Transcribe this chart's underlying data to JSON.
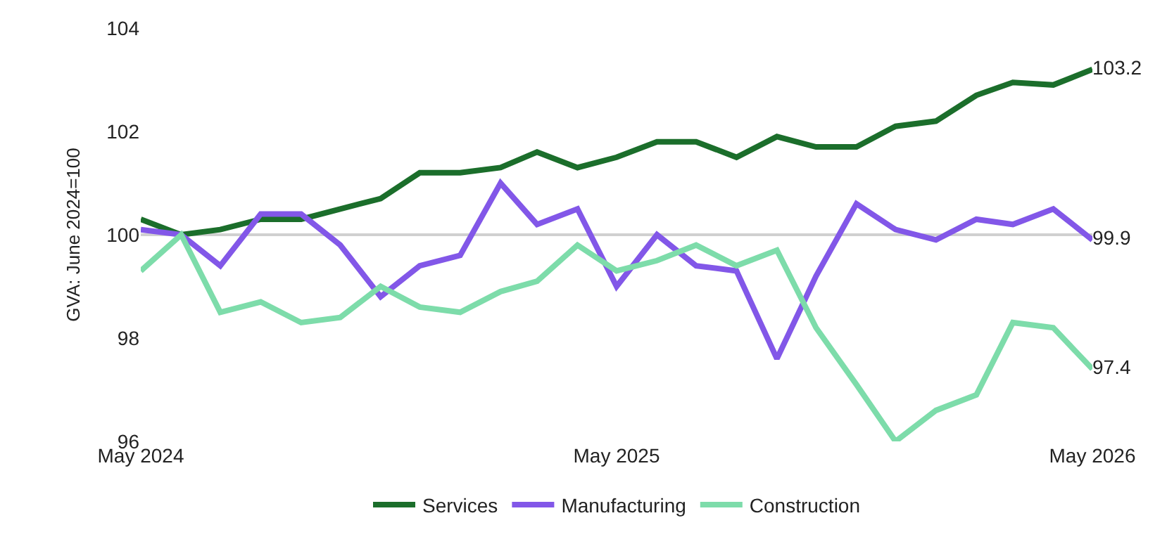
{
  "chart_data": {
    "type": "line",
    "ylabel": "GVA: June 2024=100",
    "x": [
      "2024-05",
      "2024-06",
      "2024-07",
      "2024-08",
      "2024-09",
      "2024-10",
      "2024-11",
      "2024-12",
      "2025-01",
      "2025-02",
      "2025-03",
      "2025-04",
      "2025-05",
      "2025-06",
      "2025-07",
      "2025-08",
      "2025-09",
      "2025-10",
      "2025-11",
      "2025-12",
      "2026-01",
      "2026-02",
      "2026-03",
      "2026-04",
      "2026-05"
    ],
    "series": [
      {
        "name": "Services",
        "color": "#1b6e2b",
        "values": [
          100.3,
          100.0,
          100.1,
          100.3,
          100.3,
          100.5,
          100.7,
          101.2,
          101.2,
          101.3,
          101.6,
          101.3,
          101.5,
          101.8,
          101.8,
          101.5,
          101.9,
          101.7,
          101.7,
          102.1,
          102.2,
          102.7,
          102.95,
          102.9,
          103.2
        ],
        "value_labels": [
          null,
          null,
          null,
          null,
          null,
          null,
          null,
          null,
          null,
          null,
          null,
          null,
          null,
          null,
          null,
          null,
          null,
          null,
          null,
          null,
          null,
          null,
          null,
          null,
          "103.2"
        ]
      },
      {
        "name": "Manufacturing",
        "color": "#8257e8",
        "values": [
          100.1,
          100.0,
          99.4,
          100.4,
          100.4,
          99.8,
          98.8,
          99.4,
          99.6,
          101.0,
          100.2,
          100.5,
          99.0,
          100.0,
          99.4,
          99.3,
          97.6,
          99.2,
          100.6,
          100.1,
          99.9,
          100.3,
          100.2,
          100.5,
          99.9
        ],
        "value_labels": [
          null,
          null,
          null,
          null,
          null,
          null,
          null,
          null,
          null,
          null,
          null,
          null,
          null,
          null,
          null,
          null,
          null,
          null,
          null,
          null,
          null,
          null,
          null,
          null,
          "99.9"
        ]
      },
      {
        "name": "Construction",
        "color": "#7ddcaa",
        "values": [
          99.3,
          100.0,
          98.5,
          98.7,
          98.3,
          98.4,
          99.0,
          98.6,
          98.5,
          98.9,
          99.1,
          99.8,
          99.3,
          99.5,
          99.8,
          99.4,
          99.7,
          98.2,
          97.1,
          96.0,
          96.6,
          96.9,
          98.3,
          98.2,
          97.4
        ],
        "value_labels": [
          null,
          null,
          null,
          null,
          null,
          null,
          null,
          null,
          null,
          null,
          null,
          null,
          null,
          null,
          null,
          null,
          null,
          null,
          null,
          null,
          null,
          null,
          null,
          null,
          "97.4"
        ]
      }
    ],
    "xlim": [
      "2024-05",
      "2026-05"
    ],
    "xticks": [
      {
        "value": "2024-05",
        "label": "May 2024"
      },
      {
        "value": "2025-05",
        "label": "May 2025"
      },
      {
        "value": "2026-05",
        "label": "May 2026"
      }
    ],
    "ylim": [
      96,
      104
    ],
    "yticks": [
      96,
      98,
      100,
      102,
      104
    ],
    "ref_lines": [
      {
        "axis": "y",
        "value": 100,
        "label": null,
        "color": "#d0d0d0"
      }
    ],
    "grid": false,
    "legend": "bottom",
    "marker": "none",
    "line_style": "solid"
  }
}
